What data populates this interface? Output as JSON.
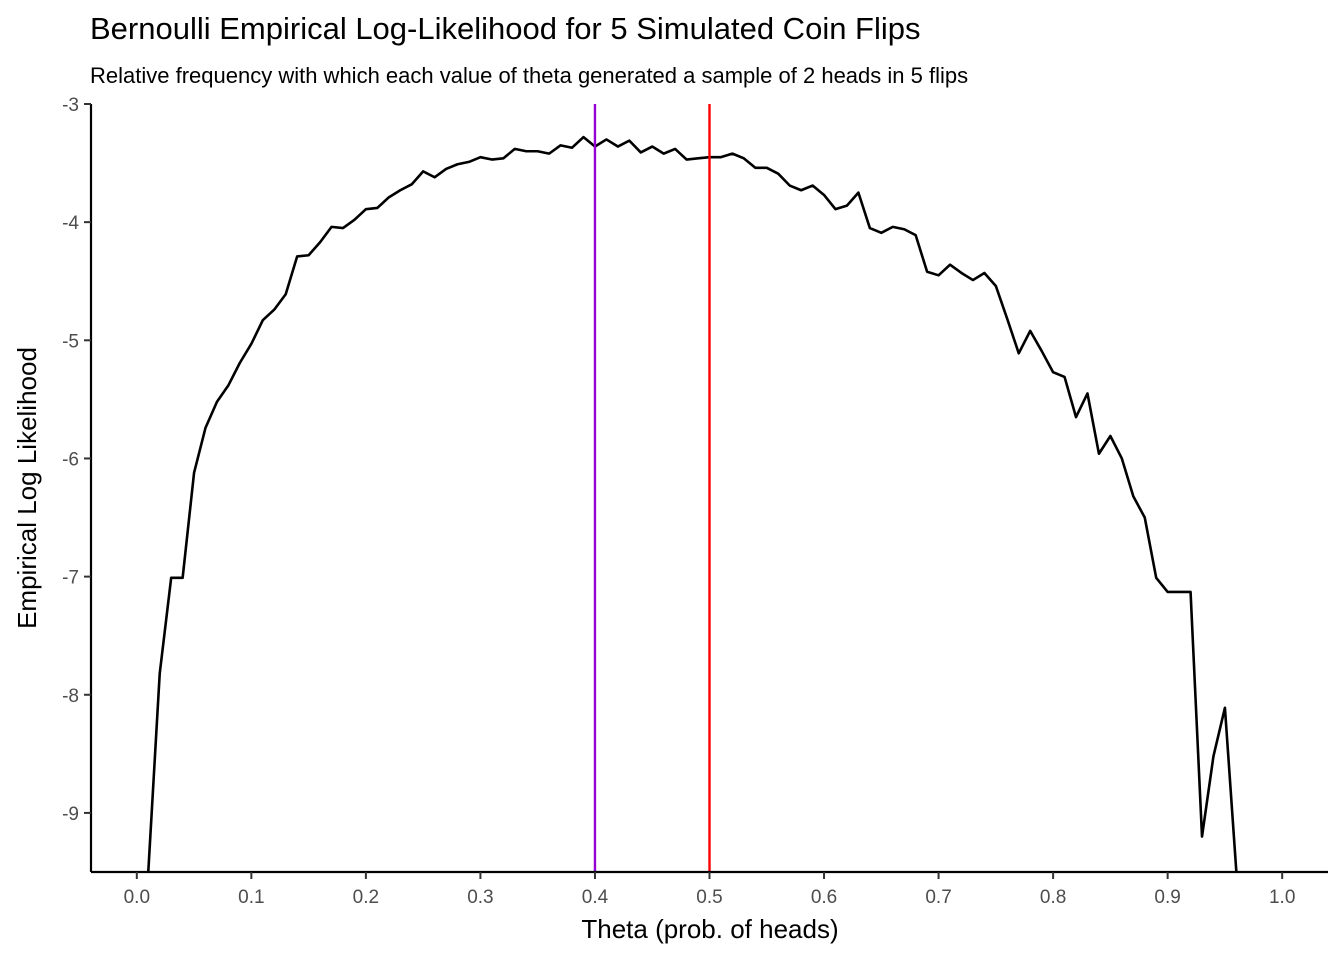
{
  "chart_data": {
    "type": "line",
    "title": "Bernoulli Empirical Log-Likelihood for 5 Simulated Coin Flips",
    "subtitle": "Relative frequency with which each value of theta generated a sample of 2 heads in 5 flips",
    "xlabel": "Theta (prob. of heads)",
    "ylabel": "Empirical Log Likelihood",
    "xlim": [
      -0.04,
      1.04
    ],
    "ylim": [
      -9.5,
      -3
    ],
    "x_ticks": [
      "0.0",
      "0.1",
      "0.2",
      "0.3",
      "0.4",
      "0.5",
      "0.6",
      "0.7",
      "0.8",
      "0.9",
      "1.0"
    ],
    "y_ticks": [
      "-3",
      "-4",
      "-5",
      "-6",
      "-7",
      "-8",
      "-9"
    ],
    "grid": false,
    "series": [
      {
        "color": "#000000",
        "points": [
          [
            0.01,
            -9.5
          ],
          [
            0.02,
            -7.82
          ],
          [
            0.03,
            -7.01
          ],
          [
            0.04,
            -7.01
          ],
          [
            0.05,
            -6.12
          ],
          [
            0.06,
            -5.74
          ],
          [
            0.07,
            -5.52
          ],
          [
            0.08,
            -5.38
          ],
          [
            0.09,
            -5.19
          ],
          [
            0.1,
            -5.03
          ],
          [
            0.11,
            -4.83
          ],
          [
            0.12,
            -4.74
          ],
          [
            0.13,
            -4.61
          ],
          [
            0.14,
            -4.29
          ],
          [
            0.15,
            -4.28
          ],
          [
            0.16,
            -4.17
          ],
          [
            0.17,
            -4.04
          ],
          [
            0.18,
            -4.05
          ],
          [
            0.19,
            -3.98
          ],
          [
            0.2,
            -3.89
          ],
          [
            0.21,
            -3.88
          ],
          [
            0.22,
            -3.79
          ],
          [
            0.23,
            -3.73
          ],
          [
            0.24,
            -3.68
          ],
          [
            0.25,
            -3.57
          ],
          [
            0.26,
            -3.62
          ],
          [
            0.27,
            -3.55
          ],
          [
            0.28,
            -3.51
          ],
          [
            0.29,
            -3.49
          ],
          [
            0.3,
            -3.45
          ],
          [
            0.31,
            -3.47
          ],
          [
            0.32,
            -3.46
          ],
          [
            0.33,
            -3.38
          ],
          [
            0.34,
            -3.4
          ],
          [
            0.35,
            -3.4
          ],
          [
            0.36,
            -3.42
          ],
          [
            0.37,
            -3.35
          ],
          [
            0.38,
            -3.37
          ],
          [
            0.39,
            -3.28
          ],
          [
            0.4,
            -3.36
          ],
          [
            0.41,
            -3.3
          ],
          [
            0.42,
            -3.36
          ],
          [
            0.43,
            -3.31
          ],
          [
            0.44,
            -3.41
          ],
          [
            0.45,
            -3.36
          ],
          [
            0.46,
            -3.42
          ],
          [
            0.47,
            -3.38
          ],
          [
            0.48,
            -3.47
          ],
          [
            0.49,
            -3.46
          ],
          [
            0.5,
            -3.45
          ],
          [
            0.51,
            -3.45
          ],
          [
            0.52,
            -3.42
          ],
          [
            0.53,
            -3.46
          ],
          [
            0.54,
            -3.54
          ],
          [
            0.55,
            -3.54
          ],
          [
            0.56,
            -3.59
          ],
          [
            0.57,
            -3.69
          ],
          [
            0.58,
            -3.73
          ],
          [
            0.59,
            -3.69
          ],
          [
            0.6,
            -3.77
          ],
          [
            0.61,
            -3.89
          ],
          [
            0.62,
            -3.86
          ],
          [
            0.63,
            -3.75
          ],
          [
            0.64,
            -4.05
          ],
          [
            0.65,
            -4.09
          ],
          [
            0.66,
            -4.04
          ],
          [
            0.67,
            -4.06
          ],
          [
            0.68,
            -4.11
          ],
          [
            0.69,
            -4.42
          ],
          [
            0.7,
            -4.45
          ],
          [
            0.71,
            -4.36
          ],
          [
            0.72,
            -4.43
          ],
          [
            0.73,
            -4.49
          ],
          [
            0.74,
            -4.43
          ],
          [
            0.75,
            -4.54
          ],
          [
            0.76,
            -4.82
          ],
          [
            0.77,
            -5.11
          ],
          [
            0.78,
            -4.92
          ],
          [
            0.79,
            -5.09
          ],
          [
            0.8,
            -5.27
          ],
          [
            0.81,
            -5.31
          ],
          [
            0.82,
            -5.65
          ],
          [
            0.83,
            -5.45
          ],
          [
            0.84,
            -5.96
          ],
          [
            0.85,
            -5.81
          ],
          [
            0.86,
            -6.0
          ],
          [
            0.87,
            -6.32
          ],
          [
            0.88,
            -6.5
          ],
          [
            0.89,
            -7.01
          ],
          [
            0.9,
            -7.13
          ],
          [
            0.91,
            -7.13
          ],
          [
            0.92,
            -7.13
          ],
          [
            0.93,
            -9.2
          ],
          [
            0.94,
            -8.52
          ],
          [
            0.95,
            -8.11
          ],
          [
            0.96,
            -9.5
          ]
        ]
      }
    ],
    "vlines": [
      {
        "x": 0.4,
        "color": "#9400D3"
      },
      {
        "x": 0.5,
        "color": "#FF0000"
      }
    ]
  }
}
